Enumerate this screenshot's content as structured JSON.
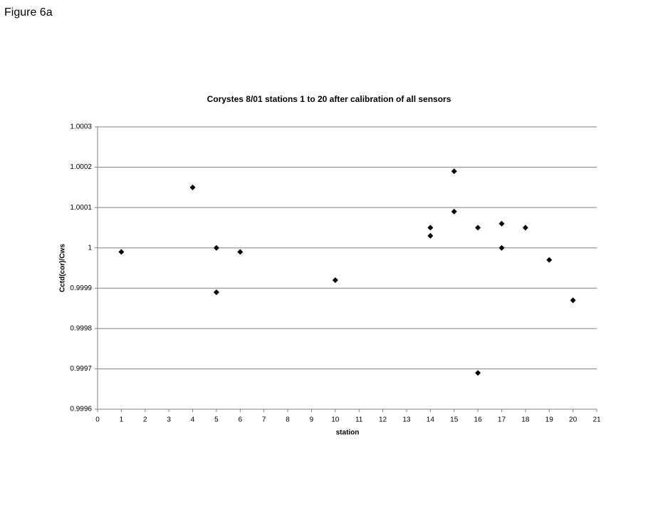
{
  "figure_label": "Figure 6a",
  "chart_data": {
    "type": "scatter",
    "title": "Corystes 8/01 stations 1 to 20 after calibration of all sensors",
    "x_label": "station",
    "y_label": "Cctd(cor)/Cws",
    "x": [
      1,
      4,
      5,
      5,
      6,
      10,
      14,
      14,
      15,
      15,
      16,
      16,
      17,
      17,
      18,
      19,
      20
    ],
    "y": [
      0.99999,
      1.00015,
      1.0,
      0.99989,
      0.99999,
      0.99992,
      1.00005,
      1.00003,
      1.00019,
      1.00009,
      1.00005,
      0.99969,
      1.00006,
      1.0,
      1.00005,
      0.99997,
      0.99987
    ],
    "color": "#000000",
    "xlim": [
      0,
      21
    ],
    "xticks": [
      0,
      1,
      2,
      3,
      4,
      5,
      6,
      7,
      8,
      9,
      10,
      11,
      12,
      13,
      14,
      15,
      16,
      17,
      18,
      19,
      20,
      21
    ],
    "ylim": [
      0.9996,
      1.0003
    ],
    "yticks": [
      0.9996,
      0.9997,
      0.9998,
      0.9999,
      1,
      1.0001,
      1.0002,
      1.0003
    ],
    "grid": true
  }
}
